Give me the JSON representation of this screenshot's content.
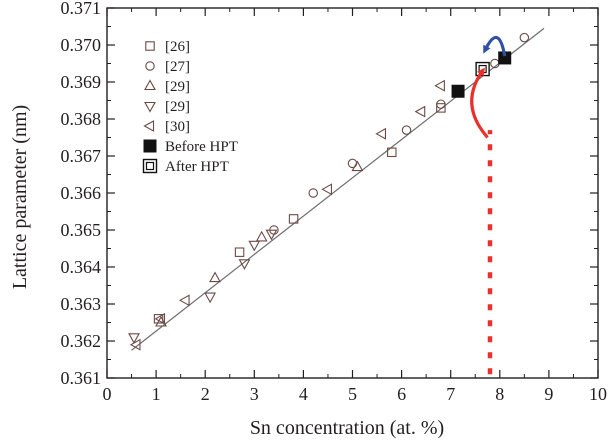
{
  "chart_data": {
    "type": "scatter",
    "title": "",
    "xlabel": "Sn concentration  (at. %)",
    "ylabel": "Lattice parameter  (nm)",
    "xlim": [
      0,
      10
    ],
    "ylim": [
      0.361,
      0.371
    ],
    "xticks": [
      "0",
      "1",
      "2",
      "3",
      "4",
      "5",
      "6",
      "7",
      "8",
      "9",
      "10"
    ],
    "yticks": [
      "0.361",
      "0.362",
      "0.363",
      "0.364",
      "0.365",
      "0.366",
      "0.367",
      "0.368",
      "0.369",
      "0.370",
      "0.371"
    ],
    "grid": false,
    "legend_position": "top-left",
    "fit_line": {
      "x": [
        0.5,
        8.9
      ],
      "y": [
        0.36175,
        0.37045
      ]
    },
    "series": [
      {
        "name": "[26]",
        "marker": "square-open",
        "x": [
          1.05,
          2.7,
          3.8,
          5.8,
          6.8
        ],
        "y": [
          0.3626,
          0.3644,
          0.3653,
          0.3671,
          0.3683
        ]
      },
      {
        "name": "[27]",
        "marker": "circle-open",
        "x": [
          3.4,
          4.2,
          5.0,
          6.1,
          6.8,
          7.9,
          8.5
        ],
        "y": [
          0.365,
          0.366,
          0.3668,
          0.3677,
          0.3684,
          0.3695,
          0.3702
        ]
      },
      {
        "name": "[29]",
        "marker": "triangle-up-open",
        "x": [
          1.1,
          2.2,
          3.15,
          5.1
        ],
        "y": [
          0.3625,
          0.3637,
          0.3648,
          0.3667
        ]
      },
      {
        "name": "[29]",
        "marker": "triangle-down-open",
        "x": [
          0.55,
          2.1,
          2.8,
          3.0,
          3.35
        ],
        "y": [
          0.3621,
          0.3632,
          0.3641,
          0.3646,
          0.3649
        ]
      },
      {
        "name": "[30]",
        "marker": "triangle-left-open",
        "x": [
          0.6,
          1.1,
          1.6,
          4.5,
          5.6,
          6.4,
          6.8
        ],
        "y": [
          0.3619,
          0.3626,
          0.3631,
          0.3661,
          0.3676,
          0.3682,
          0.3689
        ]
      },
      {
        "name": "Before HPT",
        "marker": "square-filled",
        "x": [
          7.15,
          8.1
        ],
        "y": [
          0.36875,
          0.36965
        ]
      },
      {
        "name": "After HPT",
        "marker": "square-double-open",
        "x": [
          7.65
        ],
        "y": [
          0.36935
        ]
      }
    ],
    "annotations": [
      {
        "type": "dotted-vertical-line",
        "color": "#e8312a",
        "x": 7.8,
        "y_from": 0.3611,
        "y_to": 0.3677
      },
      {
        "type": "curved-arrow",
        "color": "#e8312a",
        "from": [
          7.75,
          0.3675
        ],
        "to": [
          7.65,
          0.3693
        ]
      },
      {
        "type": "curved-arrow",
        "color": "#2f4fa3",
        "from": [
          8.1,
          0.3697
        ],
        "to": [
          7.7,
          0.3697
        ]
      }
    ]
  }
}
